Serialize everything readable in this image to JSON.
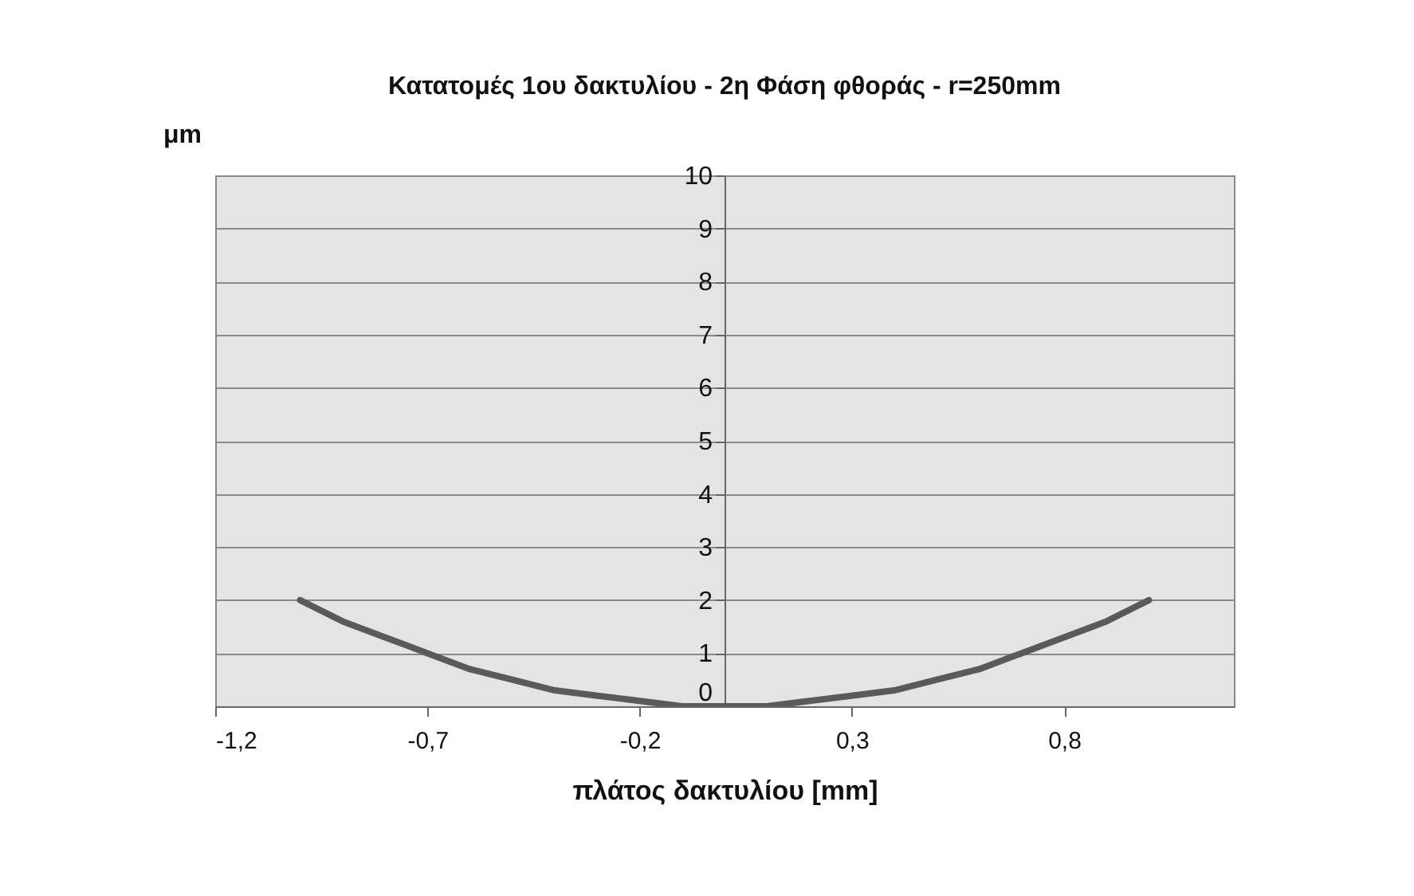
{
  "chart_data": {
    "type": "line",
    "title": "Κατατομές 1ου δακτυλίου - 2η Φάση φθοράς - r=250mm",
    "xlabel": "πλάτος δακτυλίου [mm]",
    "ylabel": "μm",
    "x": [
      -1,
      -0.9,
      -0.8,
      -0.7,
      -0.6,
      -0.5,
      -0.4,
      -0.3,
      -0.2,
      -0.1,
      0,
      0.1,
      0.2,
      0.3,
      0.4,
      0.5,
      0.6,
      0.7,
      0.8,
      0.9,
      1
    ],
    "series": [
      {
        "color": "#5a5a5a",
        "values": [
          2,
          1.6,
          1.3,
          1,
          0.7,
          0.5,
          0.3,
          0.2,
          0.1,
          0,
          0,
          0,
          0.1,
          0.2,
          0.3,
          0.5,
          0.7,
          1,
          1.3,
          1.6,
          2
        ]
      }
    ],
    "xlim": [
      -1.2,
      1.2
    ],
    "xticks": [
      {
        "value": -1.2,
        "label": "-1,2"
      },
      {
        "value": -0.7,
        "label": "-0,7"
      },
      {
        "value": -0.2,
        "label": "-0,2"
      },
      {
        "value": 0.3,
        "label": "0,3"
      },
      {
        "value": 0.8,
        "label": "0,8"
      }
    ],
    "ylim": [
      0,
      10
    ],
    "yticks": [
      0,
      1,
      2,
      3,
      4,
      5,
      6,
      7,
      8,
      9,
      10
    ],
    "grid": "y",
    "legend": false,
    "marker": "none",
    "line_style": "solid"
  }
}
